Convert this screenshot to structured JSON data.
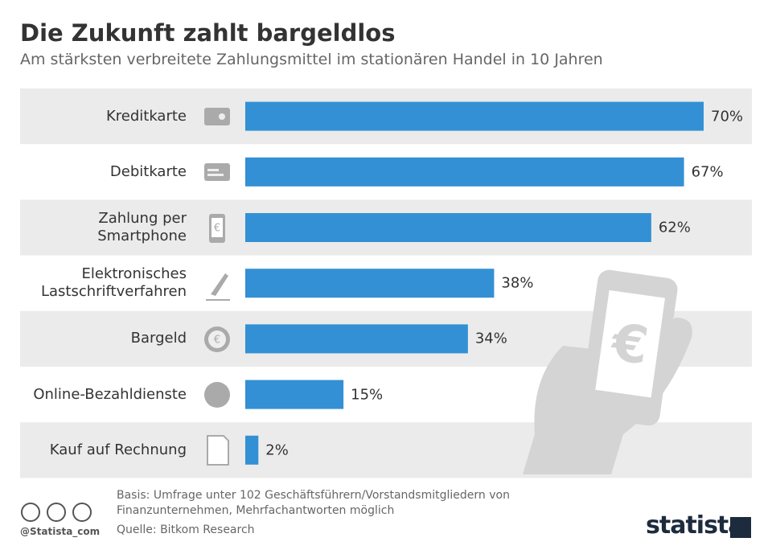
{
  "chart_data": {
    "type": "bar",
    "title": "Die Zukunft zahlt bargeldlos",
    "subtitle": "Am stärksten verbreitete Zahlungsmittel im stationären Handel in 10 Jahren",
    "categories": [
      "Kreditkarte",
      "Debitkarte",
      "Zahlung per\nSmartphone",
      "Elektronisches\nLastschriftverfahren",
      "Bargeld",
      "Online-Bezahldienste",
      "Kauf auf Rechnung"
    ],
    "values": [
      70,
      67,
      62,
      38,
      34,
      15,
      2
    ],
    "value_labels": [
      "70%",
      "67%",
      "62%",
      "38%",
      "34%",
      "15%",
      "2%"
    ],
    "color": "#3390d4",
    "notes": "Basis: Umfrage unter 102 Geschäftsführern/Vorstandsmitgliedern von Finanzunternehmen, Mehrfachantworten möglich",
    "source": "Quelle: Bitkom Research",
    "credit": "@Statista_com",
    "brand": "statista"
  }
}
